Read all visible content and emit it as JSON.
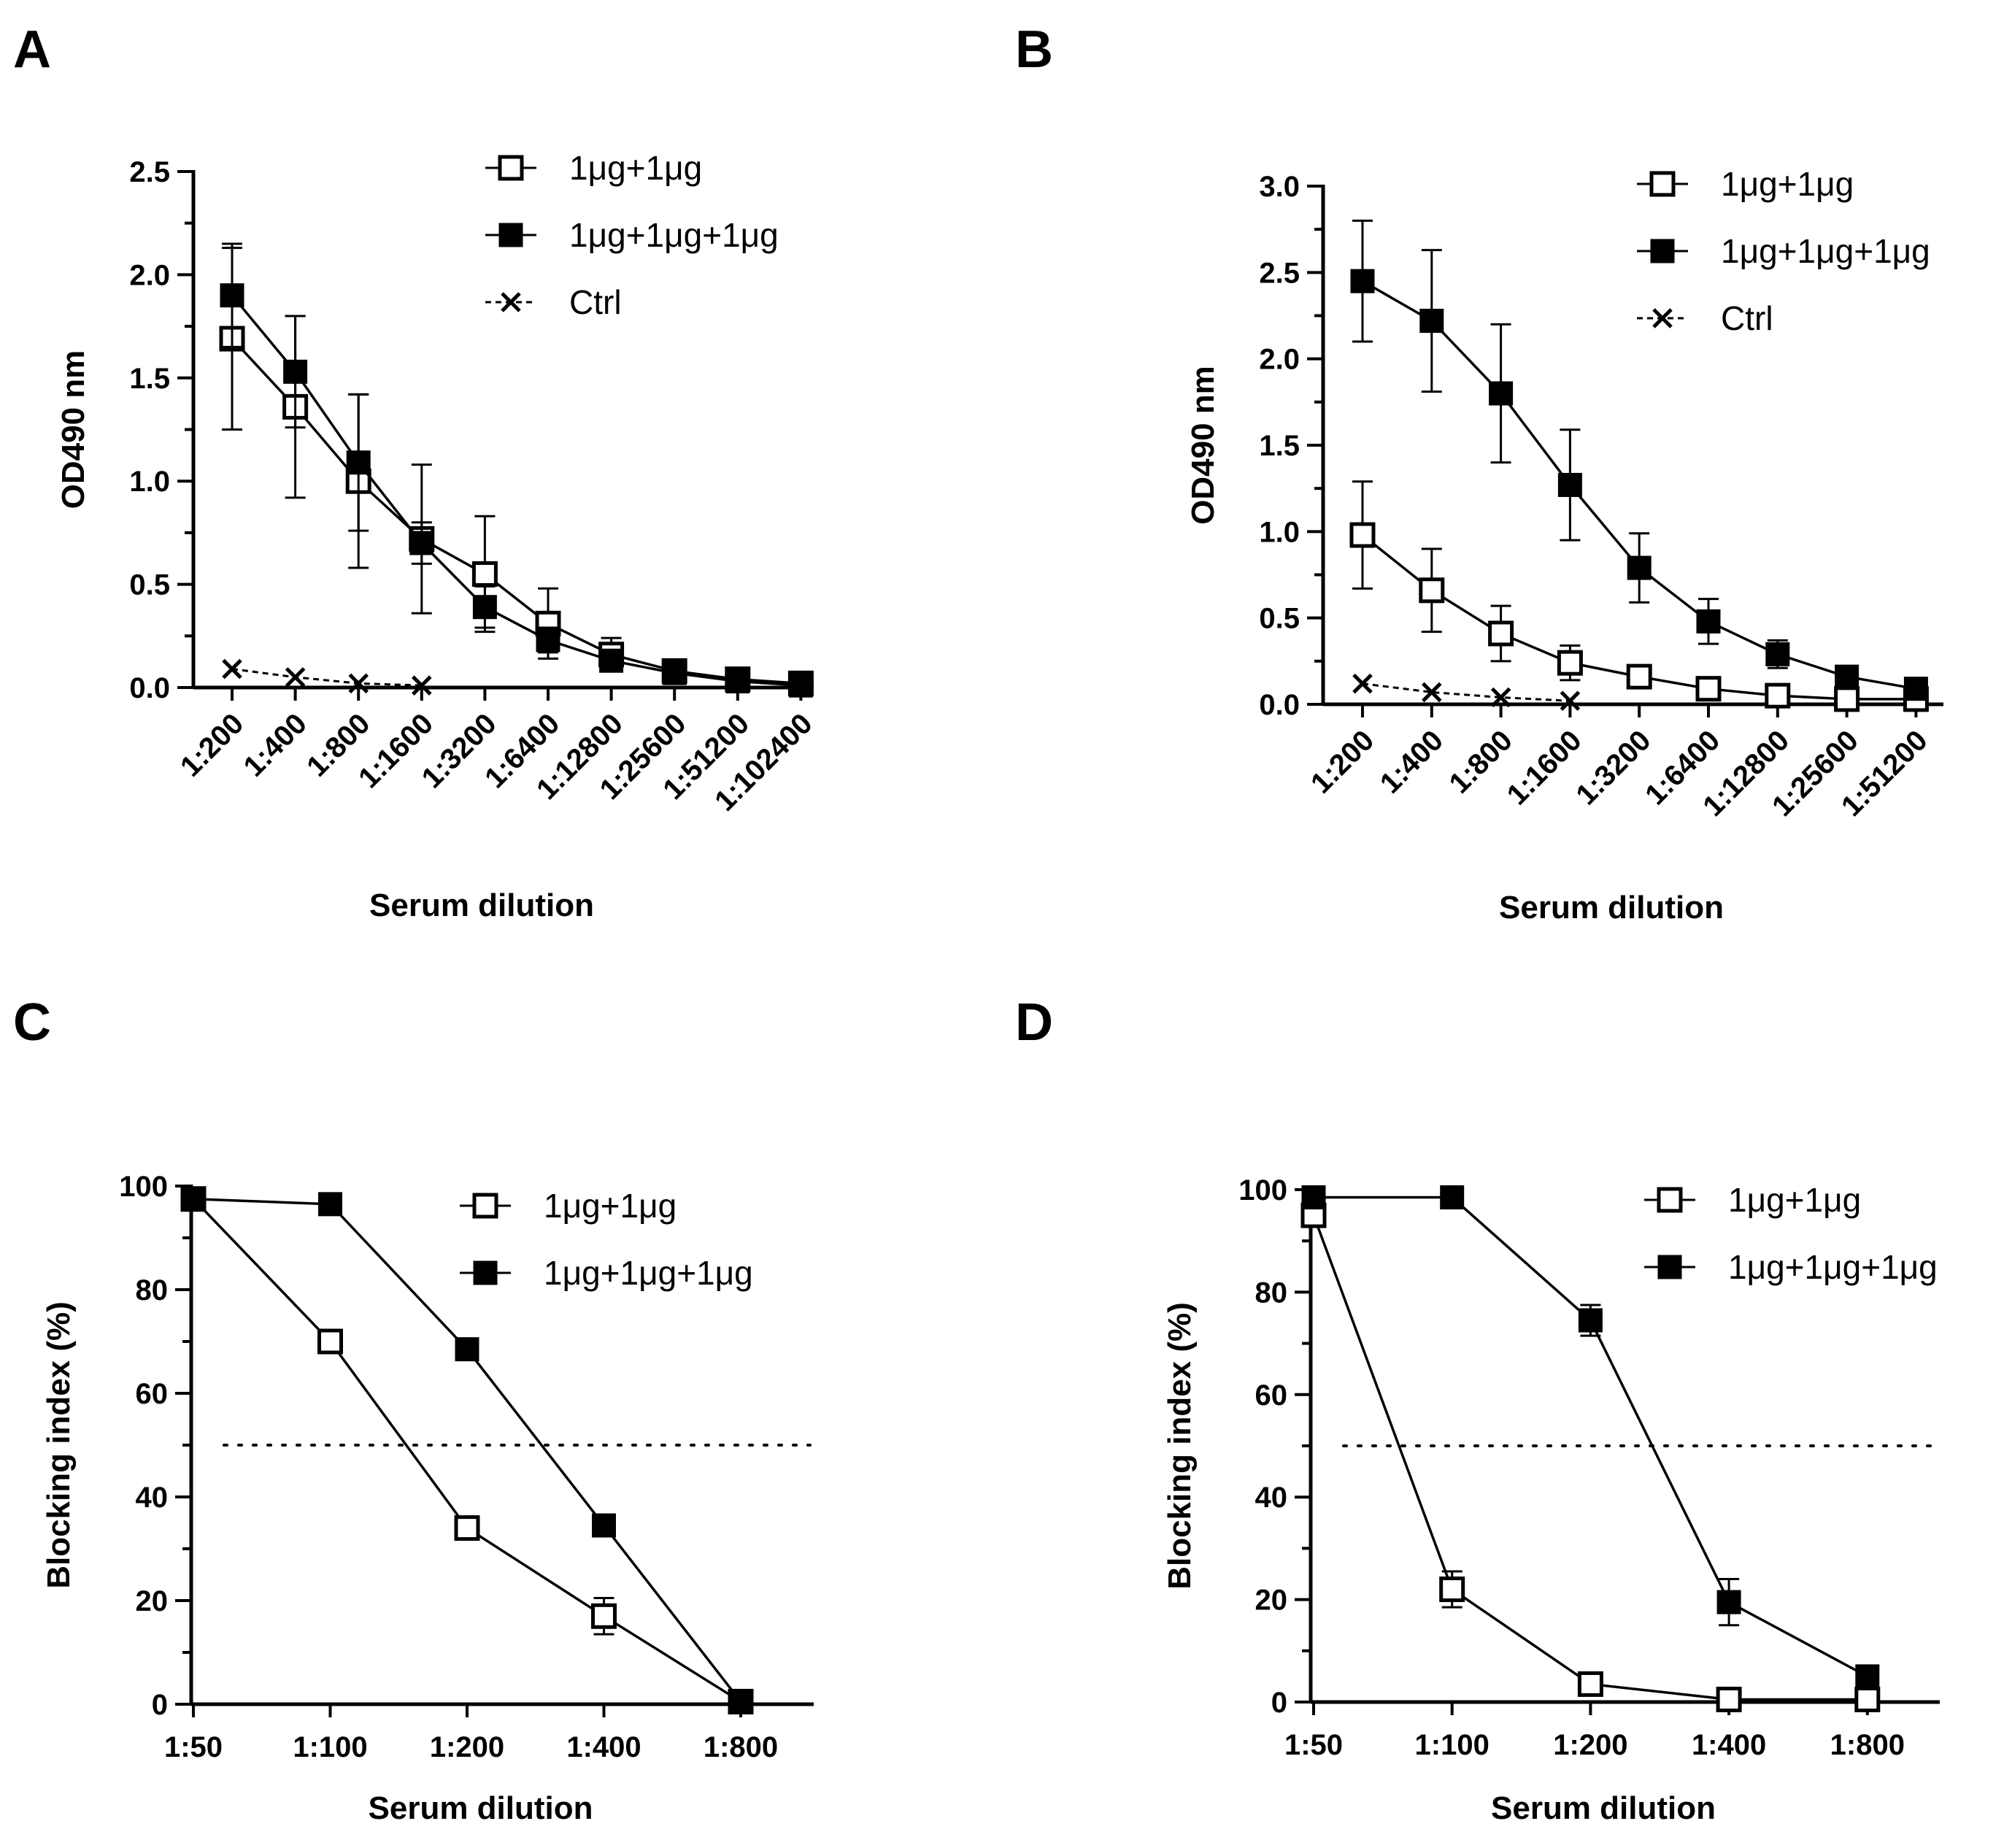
{
  "panels": [
    {
      "id": "a",
      "letter": "A",
      "chart_data": {
        "type": "line",
        "categories": [
          "1:200",
          "1:400",
          "1:800",
          "1:1600",
          "1:3200",
          "1:6400",
          "1:12800",
          "1:25600",
          "1:51200",
          "1:102400"
        ],
        "xlabel": "Serum dilution",
        "ylabel": "OD490 nm",
        "ylim": [
          0,
          2.5
        ],
        "yticks": [
          0,
          0.5,
          1.0,
          1.5,
          2.0,
          2.5
        ],
        "ytick_labels": [
          "0.0",
          "0.5",
          "1.0",
          "1.5",
          "2.0",
          "2.5"
        ],
        "legend_position": "top-right",
        "series": [
          {
            "name": "1μg+1μg",
            "marker": "open-square",
            "line": "solid",
            "values": [
              1.69,
              1.36,
              1.0,
              0.72,
              0.55,
              0.31,
              0.16,
              0.08,
              0.04,
              0.02
            ],
            "errors": [
              0.44,
              0.44,
              0.42,
              0.36,
              0.28,
              0.17,
              0.08,
              0.03,
              0.01,
              0.01
            ]
          },
          {
            "name": "1μg+1μg+1μg",
            "marker": "filled-square",
            "line": "solid",
            "values": [
              1.9,
              1.53,
              1.09,
              0.7,
              0.39,
              0.23,
              0.13,
              0.07,
              0.03,
              0.01
            ],
            "errors": [
              0.25,
              0.27,
              0.33,
              0.1,
              0.1,
              0.06,
              0.03,
              0.02,
              0.01,
              0.01
            ]
          },
          {
            "name": "Ctrl",
            "marker": "x",
            "line": "dashed",
            "values": [
              0.09,
              0.05,
              0.02,
              0.01,
              null,
              null,
              null,
              null,
              null,
              null
            ],
            "errors": [
              0,
              0,
              0,
              0,
              null,
              null,
              null,
              null,
              null,
              null
            ]
          }
        ]
      }
    },
    {
      "id": "b",
      "letter": "B",
      "chart_data": {
        "type": "line",
        "categories": [
          "1:200",
          "1:400",
          "1:800",
          "1:1600",
          "1:3200",
          "1:6400",
          "1:12800",
          "1:25600",
          "1:51200"
        ],
        "xlabel": "Serum  dilution",
        "ylabel": "OD490 nm",
        "ylim": [
          0,
          3.0
        ],
        "yticks": [
          0,
          0.5,
          1.0,
          1.5,
          2.0,
          2.5,
          3.0
        ],
        "ytick_labels": [
          "0.0",
          "0.5",
          "1.0",
          "1.5",
          "2.0",
          "2.5",
          "3.0"
        ],
        "legend_position": "top-right",
        "series": [
          {
            "name": "1μg+1μg",
            "marker": "open-square",
            "line": "solid",
            "values": [
              0.98,
              0.66,
              0.41,
              0.24,
              0.16,
              0.09,
              0.05,
              0.03,
              0.03
            ],
            "errors": [
              0.31,
              0.24,
              0.16,
              0.1,
              0.04,
              0.03,
              0.02,
              0.02,
              0.01
            ]
          },
          {
            "name": "1μg+1μg+1μg",
            "marker": "filled-square",
            "line": "solid",
            "values": [
              2.45,
              2.22,
              1.8,
              1.27,
              0.79,
              0.48,
              0.29,
              0.16,
              0.09
            ],
            "errors": [
              0.35,
              0.41,
              0.4,
              0.32,
              0.2,
              0.13,
              0.08,
              0.05,
              0.03
            ]
          },
          {
            "name": "Ctrl",
            "marker": "x",
            "line": "dashed",
            "values": [
              0.12,
              0.07,
              0.04,
              0.02,
              null,
              null,
              null,
              null,
              null
            ],
            "errors": [
              0,
              0,
              0,
              0,
              null,
              null,
              null,
              null,
              null
            ]
          }
        ]
      }
    },
    {
      "id": "c",
      "letter": "C",
      "chart_data": {
        "type": "line",
        "categories": [
          "1:50",
          "1:100",
          "1:200",
          "1:400",
          "1:800"
        ],
        "xlabel": "Serum dilution",
        "ylabel": "Blocking index (%)",
        "ylim": [
          0,
          100
        ],
        "yticks": [
          0,
          20,
          40,
          60,
          80,
          100
        ],
        "ytick_labels": [
          "0",
          "20",
          "40",
          "60",
          "80",
          "100"
        ],
        "reference_line": 50,
        "legend_position": "top-right",
        "series": [
          {
            "name": "1μg+1μg",
            "marker": "open-square",
            "line": "solid",
            "values": [
              97.5,
              70,
              34,
              17,
              0.5
            ],
            "errors": [
              0.8,
              1,
              1,
              3.5,
              0.3
            ]
          },
          {
            "name": "1μg+1μg+1μg",
            "marker": "filled-square",
            "line": "solid",
            "values": [
              97.5,
              96.5,
              68.5,
              34.5,
              0.5
            ],
            "errors": [
              0.8,
              0.8,
              0.8,
              0.8,
              0.3
            ]
          }
        ]
      }
    },
    {
      "id": "d",
      "letter": "D",
      "chart_data": {
        "type": "line",
        "categories": [
          "1:50",
          "1:100",
          "1:200",
          "1:400",
          "1:800"
        ],
        "xlabel": "Serum dilution",
        "ylabel": "Blocking index (%)",
        "ylim": [
          0,
          100
        ],
        "yticks": [
          0,
          20,
          40,
          60,
          80,
          100
        ],
        "ytick_labels": [
          "0",
          "20",
          "40",
          "60",
          "80",
          "100"
        ],
        "reference_line": 50,
        "legend_position": "top-right",
        "series": [
          {
            "name": "1μg+1μg",
            "marker": "open-square",
            "line": "solid",
            "values": [
              95,
              22,
              3.5,
              0.5,
              0.5
            ],
            "errors": [
              1,
              3.5,
              1,
              0.3,
              0.3
            ]
          },
          {
            "name": "1μg+1μg+1μg",
            "marker": "filled-square",
            "line": "solid",
            "values": [
              98.5,
              98.5,
              74.5,
              19.5,
              5
            ],
            "errors": [
              0.5,
              0.5,
              3,
              4.5,
              0.8
            ]
          }
        ]
      }
    }
  ]
}
